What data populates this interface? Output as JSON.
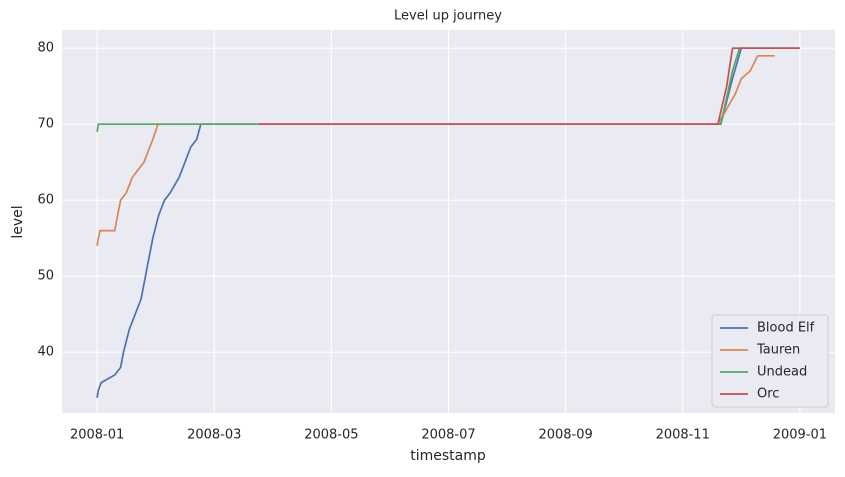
{
  "chart_data": {
    "type": "line",
    "title": "Level up journey",
    "x_label": "timestamp",
    "y_label": "level",
    "xlim": [
      -0.6,
      12.6
    ],
    "ylim": [
      32,
      82.4
    ],
    "xticks": [
      {
        "value": 0,
        "label": "2008-01"
      },
      {
        "value": 2,
        "label": "2008-03"
      },
      {
        "value": 4,
        "label": "2008-05"
      },
      {
        "value": 6,
        "label": "2008-07"
      },
      {
        "value": 8,
        "label": "2008-09"
      },
      {
        "value": 10,
        "label": "2008-11"
      },
      {
        "value": 12,
        "label": "2009-01"
      }
    ],
    "yticks": [
      40,
      50,
      60,
      70,
      80
    ],
    "grid": true,
    "legend": "lower right",
    "series": [
      {
        "name": "Blood Elf",
        "color": "#4c72b0",
        "x": [
          0,
          0.02,
          0.07,
          0.3,
          0.4,
          0.45,
          0.55,
          0.65,
          0.75,
          0.85,
          0.95,
          1.05,
          1.15,
          1.25,
          1.4,
          1.5,
          1.6,
          1.7,
          1.77,
          10.65,
          10.85,
          11.0,
          12
        ],
        "values": [
          34,
          35,
          36,
          37,
          38,
          40,
          43,
          45,
          47,
          51,
          55,
          58,
          60,
          61,
          63,
          65,
          67,
          68,
          70,
          70,
          76,
          80,
          80
        ]
      },
      {
        "name": "Tauren",
        "color": "#dd8452",
        "x": [
          0,
          0.02,
          0.05,
          0.3,
          0.35,
          0.4,
          0.5,
          0.6,
          0.7,
          0.8,
          0.9,
          0.95,
          1.04,
          10.6,
          10.75,
          10.9,
          11.0,
          11.15,
          11.28,
          11.57
        ],
        "values": [
          54,
          55,
          56,
          56,
          58,
          60,
          61,
          63,
          64,
          65,
          67,
          68,
          70,
          70,
          72,
          74,
          76,
          77,
          79,
          79
        ]
      },
      {
        "name": "Undead",
        "color": "#55a868",
        "x": [
          0,
          0.02,
          10.65,
          10.85,
          10.97,
          11.9
        ],
        "values": [
          69,
          70,
          70,
          77,
          80,
          80
        ]
      },
      {
        "name": "Orc",
        "color": "#c44e52",
        "x": [
          2.76,
          10.6,
          10.75,
          10.85,
          12
        ],
        "values": [
          70,
          70,
          75,
          80,
          80
        ]
      }
    ]
  }
}
